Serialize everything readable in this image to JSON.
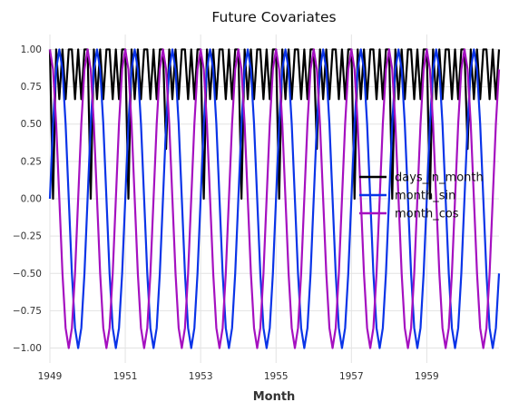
{
  "chart_data": {
    "type": "line",
    "title": "Future Covariates",
    "xlabel": "Month",
    "ylabel": "",
    "x_start": "1949-01",
    "x_end": "1960-12",
    "x_ticks": [
      "1949",
      "1951",
      "1953",
      "1955",
      "1957",
      "1959"
    ],
    "ylim": [
      -1.1,
      1.1
    ],
    "y_ticks": [
      "1.00",
      "0.75",
      "0.50",
      "0.25",
      "0.00",
      "−0.25",
      "−0.50",
      "−0.75",
      "−1.00"
    ],
    "y_tick_values": [
      1.0,
      0.75,
      0.5,
      0.25,
      0.0,
      -0.25,
      -0.5,
      -0.75,
      -1.0
    ],
    "grid": true,
    "legend_position": "center-right",
    "series": [
      {
        "name": "days_in_month",
        "color": "#000000",
        "rule": "days in calendar month, min-max scaled (28 → 0.00, 31 → 1.00)"
      },
      {
        "name": "month_sin",
        "color": "#0a34e8",
        "rule": "sin(2π·(month−1)/12)"
      },
      {
        "name": "month_cos",
        "color": "#a510c0",
        "rule": "cos(2π·(month−1)/12)"
      }
    ]
  }
}
